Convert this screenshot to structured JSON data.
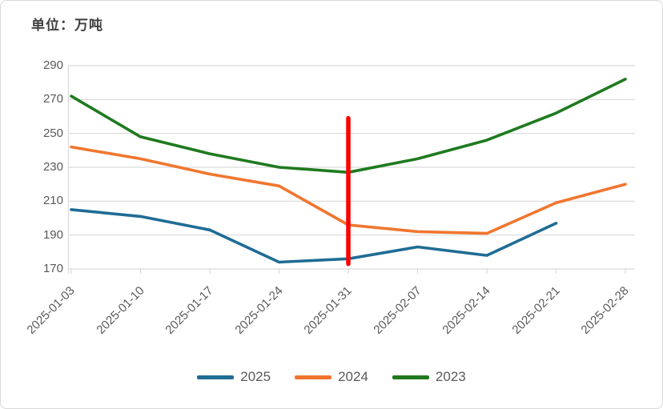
{
  "title": "单位：万吨",
  "colors": {
    "series_2025": "#1f6c94",
    "series_2024": "#f0762f",
    "series_2023": "#1f7a1f",
    "red_marker": "#ff0000",
    "grid": "#d9d9d9",
    "axis_line": "#d9d9d9",
    "axis_text": "#595959",
    "title_text": "#404040",
    "background": "#ffffff"
  },
  "chart_data": {
    "type": "line",
    "title": "单位：万吨",
    "categories": [
      "2025-01-03",
      "2025-01-10",
      "2025-01-17",
      "2025-01-24",
      "2025-01-31",
      "2025-02-07",
      "2025-02-14",
      "2025-02-21",
      "2025-02-28"
    ],
    "series": [
      {
        "name": "2025",
        "color": "#1f6c94",
        "values": [
          205,
          201,
          193,
          174,
          176,
          183,
          178,
          197,
          null
        ]
      },
      {
        "name": "2024",
        "color": "#f0762f",
        "values": [
          242,
          235,
          226,
          219,
          196,
          192,
          191,
          209,
          220
        ]
      },
      {
        "name": "2023",
        "color": "#1f7a1f",
        "values": [
          272,
          248,
          238,
          230,
          227,
          235,
          246,
          262,
          282
        ]
      }
    ],
    "ylim": [
      170,
      290
    ],
    "yticks": [
      290,
      270,
      250,
      230,
      210,
      190,
      170
    ],
    "grid": true,
    "legend_position": "bottom",
    "annotation": {
      "type": "vertical-bar",
      "category": "2025-01-31",
      "category_index": 4,
      "y_from": 173,
      "y_to": 259,
      "color": "#ff0000"
    }
  },
  "legend": {
    "items": [
      {
        "label": "2025",
        "color": "#1f6c94"
      },
      {
        "label": "2024",
        "color": "#f0762f"
      },
      {
        "label": "2023",
        "color": "#1f7a1f"
      }
    ]
  }
}
